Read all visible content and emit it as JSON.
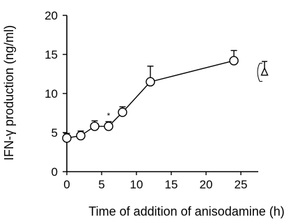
{
  "chart_data": {
    "type": "line",
    "xlabel": "Time of addition  of  anisodamine (h)",
    "ylabel": "IFN-γ production (ng/ml)",
    "xlim": [
      0,
      27.5
    ],
    "ylim": [
      0,
      20
    ],
    "xticks": [
      0,
      5,
      10,
      15,
      20,
      25
    ],
    "yticks": [
      0,
      5,
      10,
      15,
      20
    ],
    "grid": false,
    "series": [
      {
        "x": [
          0,
          2,
          4,
          6,
          8,
          12,
          24
        ],
        "y": [
          4.3,
          4.6,
          5.8,
          5.8,
          7.6,
          11.5,
          14.2
        ],
        "error": [
          0.6,
          0.6,
          0.7,
          0.6,
          0.7,
          2.0,
          1.3
        ],
        "marker": "open-circle"
      }
    ],
    "annotations": [
      {
        "text": "*",
        "x": 6,
        "y": 6.8
      }
    ],
    "side_point": {
      "marker": "open-triangle",
      "y": 12.8,
      "error": 1.3
    }
  }
}
